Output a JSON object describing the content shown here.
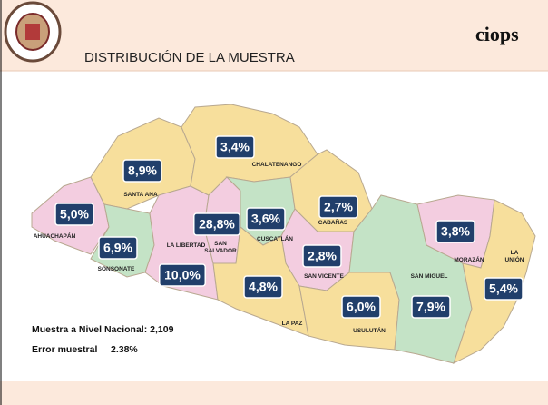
{
  "header": {
    "title": "DISTRIBUCIÓN DE LA MUESTRA",
    "brand": "ciops"
  },
  "departments": [
    {
      "name": [
        "AHUACHAPÁN"
      ],
      "label": "5,0%"
    },
    {
      "name": [
        "SANTA ANA"
      ],
      "label": "8,9%"
    },
    {
      "name": [
        "SONSONATE"
      ],
      "label": "6,9%"
    },
    {
      "name": [
        "LA LIBERTAD"
      ],
      "label": "10,0%"
    },
    {
      "name": [
        "SAN",
        "SALVADOR"
      ],
      "label": "28,8%"
    },
    {
      "name": [
        "CHALATENANGO"
      ],
      "label": "3,4%"
    },
    {
      "name": [
        "CUSCATLÁN"
      ],
      "label": "3,6%"
    },
    {
      "name": [
        "CABAÑAS"
      ],
      "label": "2,7%"
    },
    {
      "name": [
        "SAN VICENTE"
      ],
      "label": "2,8%"
    },
    {
      "name": [
        "LA PAZ"
      ],
      "label": "4,8%"
    },
    {
      "name": [
        "USULUTÁN"
      ],
      "label": "6,0%"
    },
    {
      "name": [
        "SAN MIGUEL"
      ],
      "label": "7,9%"
    },
    {
      "name": [
        "MORAZÁN"
      ],
      "label": "3,8%"
    },
    {
      "name": [
        "LA",
        "UNIÓN"
      ],
      "label": "5,4%"
    }
  ],
  "notes": {
    "sample": "Muestra a Nivel Nacional: 2,109",
    "error_label": "Error muestral",
    "error_value": "2.38%"
  }
}
